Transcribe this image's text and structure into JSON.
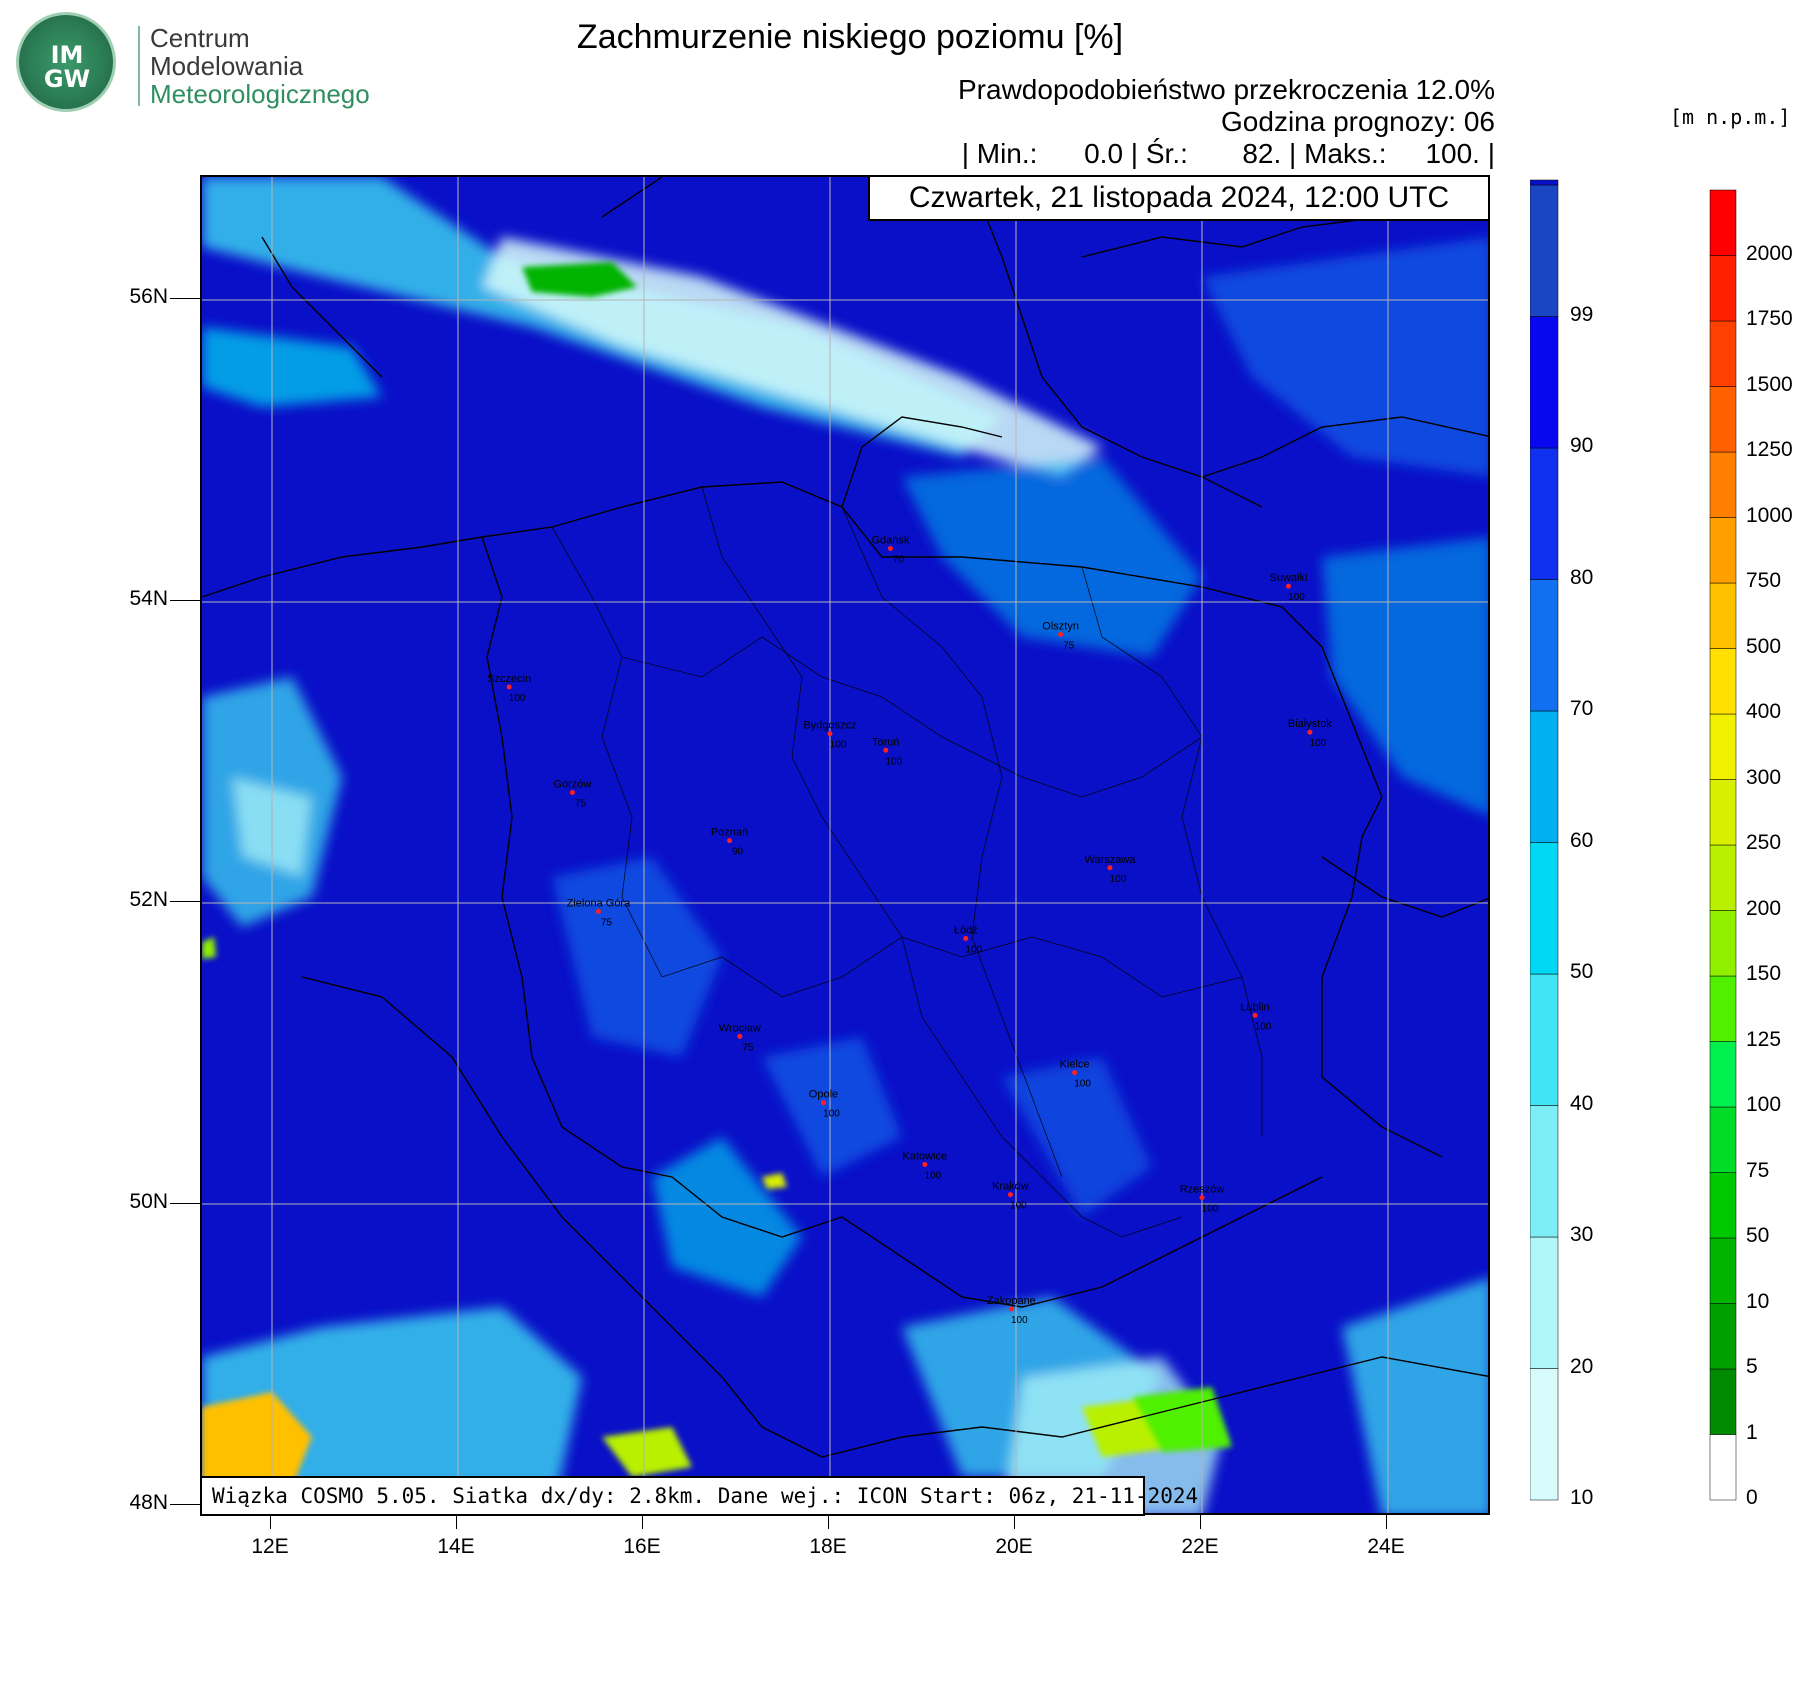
{
  "logo": {
    "abbr": "IM GW",
    "line1": "Centrum",
    "line2": "Modelowania",
    "line3": "Meteorologicznego"
  },
  "header": {
    "title": "Zachmurzenie niskiego poziomu [%]",
    "probability": "Prawdopodobieństwo przekroczenia 12.0%",
    "forecast_hour": "Godzina prognozy: 06",
    "stats": "| Min.:      0.0 | Śr.:       82. | Maks.:     100. |"
  },
  "date_label": "Czwartek, 21 listopada 2024, 12:00 UTC",
  "footer": "Wiązka COSMO 5.05. Siatka dx/dy: 2.8km. Dane wej.: ICON Start: 06z, 21-11-2024",
  "height_units": "[m n.p.m.]",
  "axes": {
    "lon_ticks": [
      "12E",
      "14E",
      "16E",
      "18E",
      "20E",
      "22E",
      "24E"
    ],
    "lat_ticks": [
      "56N",
      "54N",
      "52N",
      "50N",
      "48N"
    ]
  },
  "cloud_colorbar": {
    "labels": [
      "10",
      "20",
      "30",
      "40",
      "50",
      "60",
      "70",
      "80",
      "90",
      "99"
    ],
    "colors": [
      "#d8fcfc",
      "#b0f6f8",
      "#7eeef6",
      "#40e4f4",
      "#00d8f4",
      "#00b0f0",
      "#1070f0",
      "#1030f0",
      "#0808f0",
      "#1a46c4",
      "#0a10c8"
    ]
  },
  "height_colorbar": {
    "labels": [
      "0",
      "1",
      "5",
      "10",
      "50",
      "75",
      "100",
      "125",
      "150",
      "200",
      "250",
      "300",
      "400",
      "500",
      "750",
      "1000",
      "1250",
      "1500",
      "1750",
      "2000"
    ],
    "colors": [
      "#ffffff",
      "#008a00",
      "#00a000",
      "#00b400",
      "#00c800",
      "#00dc28",
      "#00f050",
      "#50f000",
      "#90f000",
      "#b8f000",
      "#d8f000",
      "#f0f000",
      "#ffe000",
      "#ffc000",
      "#ffa000",
      "#ff8000",
      "#ff6000",
      "#ff4000",
      "#ff2000",
      "#ff0000"
    ]
  },
  "cities": [
    {
      "name": "Gdańsk",
      "value": "70",
      "lon": 18.65,
      "lat": 54.35
    },
    {
      "name": "Suwałki",
      "value": "100",
      "lon": 22.93,
      "lat": 54.1
    },
    {
      "name": "Olsztyn",
      "value": "75",
      "lon": 20.48,
      "lat": 53.78
    },
    {
      "name": "Szczecin",
      "value": "100",
      "lon": 14.55,
      "lat": 53.43
    },
    {
      "name": "Bydgoszcz",
      "value": "100",
      "lon": 18.0,
      "lat": 53.12
    },
    {
      "name": "Toruń",
      "value": "100",
      "lon": 18.6,
      "lat": 53.01
    },
    {
      "name": "Białystok",
      "value": "100",
      "lon": 23.16,
      "lat": 53.13
    },
    {
      "name": "Gorzów",
      "value": "75",
      "lon": 15.23,
      "lat": 52.73
    },
    {
      "name": "Poznań",
      "value": "90",
      "lon": 16.92,
      "lat": 52.41
    },
    {
      "name": "Warszawa",
      "value": "100",
      "lon": 21.01,
      "lat": 52.23
    },
    {
      "name": "Zielona Góra",
      "value": "75",
      "lon": 15.51,
      "lat": 51.94
    },
    {
      "name": "Łódź",
      "value": "100",
      "lon": 19.46,
      "lat": 51.76
    },
    {
      "name": "Lublin",
      "value": "100",
      "lon": 22.57,
      "lat": 51.25
    },
    {
      "name": "Wrocław",
      "value": "75",
      "lon": 17.03,
      "lat": 51.11
    },
    {
      "name": "Kielce",
      "value": "100",
      "lon": 20.63,
      "lat": 50.87
    },
    {
      "name": "Opole",
      "value": "100",
      "lon": 17.93,
      "lat": 50.67
    },
    {
      "name": "Katowice",
      "value": "100",
      "lon": 19.02,
      "lat": 50.26
    },
    {
      "name": "Kraków",
      "value": "100",
      "lon": 19.94,
      "lat": 50.06
    },
    {
      "name": "Rzeszów",
      "value": "100",
      "lon": 22.0,
      "lat": 50.04
    },
    {
      "name": "Zakopane",
      "value": "100",
      "lon": 19.95,
      "lat": 49.3
    }
  ]
}
